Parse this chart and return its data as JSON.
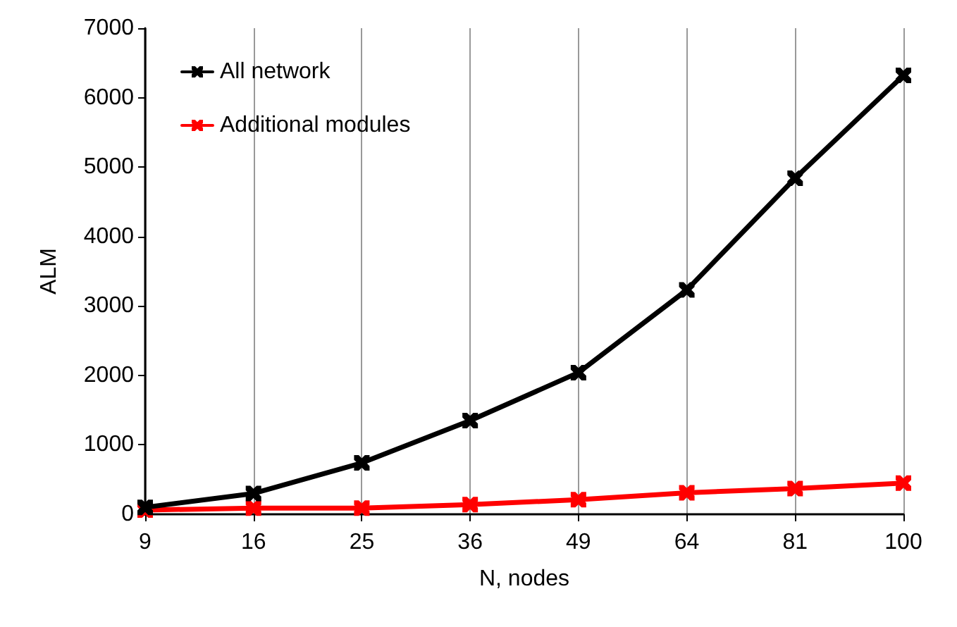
{
  "chart_data": {
    "type": "line",
    "xlabel": "N, nodes",
    "ylabel": "ALM",
    "categories": [
      "9",
      "16",
      "25",
      "36",
      "49",
      "64",
      "81",
      "100"
    ],
    "series": [
      {
        "name": "All network",
        "color": "#000000",
        "values": [
          100,
          300,
          740,
          1350,
          2040,
          3230,
          4840,
          6320
        ]
      },
      {
        "name": "Additional modules",
        "color": "#ff0000",
        "values": [
          60,
          90,
          90,
          140,
          210,
          310,
          370,
          450
        ]
      }
    ],
    "ylim": [
      0,
      7000
    ],
    "yticks": [
      0,
      1000,
      2000,
      3000,
      4000,
      5000,
      6000,
      7000
    ],
    "grid": "x",
    "legend": "top left",
    "marker": "cross",
    "line_style": "solid"
  }
}
